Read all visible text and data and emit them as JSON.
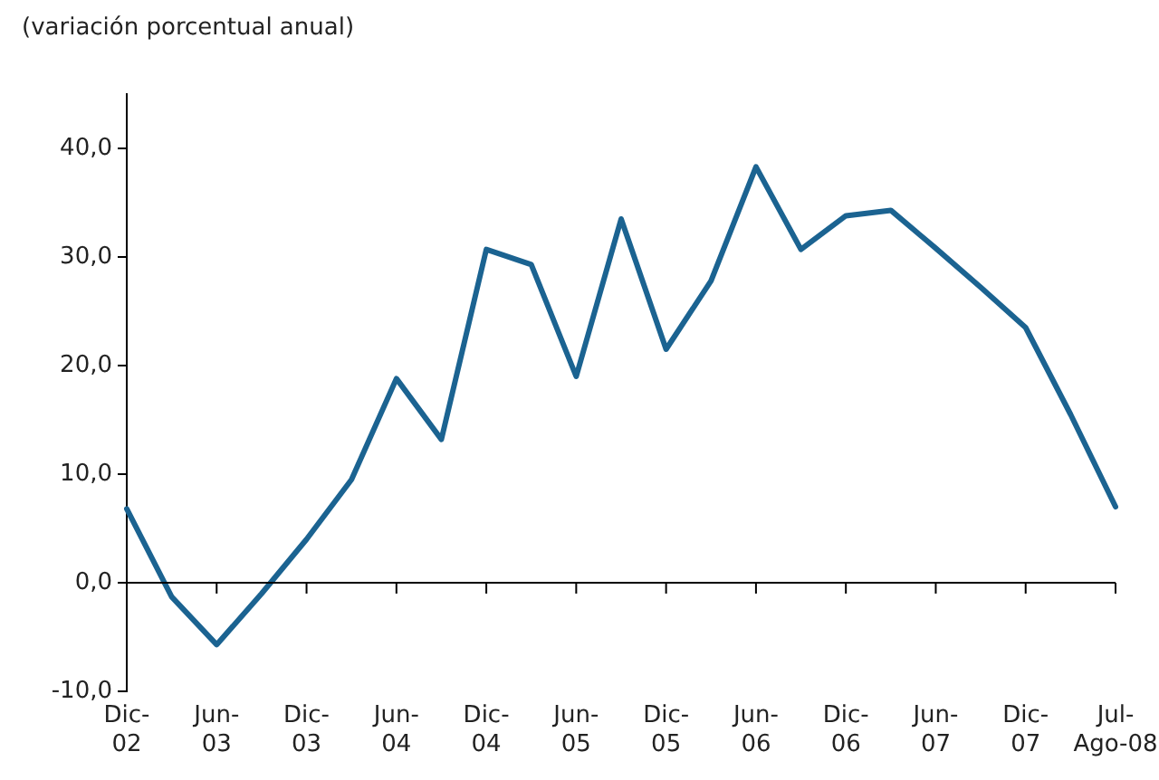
{
  "chart_data": {
    "type": "line",
    "ylabel": "(variación porcentual anual)",
    "categories": [
      "Dic-02",
      null,
      "Jun-03",
      null,
      "Dic-03",
      null,
      "Jun-04",
      null,
      "Dic-04",
      null,
      "Jun-05",
      null,
      "Dic-05",
      null,
      "Jun-06",
      null,
      "Dic-06",
      null,
      "Jun-07",
      null,
      "Dic-07",
      null,
      "Jul-Ago-08"
    ],
    "series": [
      {
        "color": "#1b6391",
        "values": [
          6.8,
          -1.3,
          -5.7,
          -1.0,
          4.0,
          9.5,
          18.8,
          13.2,
          30.7,
          29.3,
          19.0,
          33.5,
          21.5,
          27.8,
          38.3,
          30.7,
          33.8,
          34.3,
          30.8,
          27.2,
          23.5,
          15.5,
          7.0
        ]
      }
    ],
    "ylim": [
      -10,
      45
    ],
    "yticks": [
      {
        "value": -10,
        "label": "-10,0"
      },
      {
        "value": 0,
        "label": "0,0"
      },
      {
        "value": 10,
        "label": "10,0"
      },
      {
        "value": 20,
        "label": "20,0"
      },
      {
        "value": 30,
        "label": "30,0"
      },
      {
        "value": 40,
        "label": "40,0"
      }
    ],
    "ref_lines": [
      {
        "axis": "y",
        "value": 0,
        "color": "#000000"
      }
    ],
    "grid": false,
    "legend": false,
    "marker": "none",
    "line_style": "solid"
  }
}
